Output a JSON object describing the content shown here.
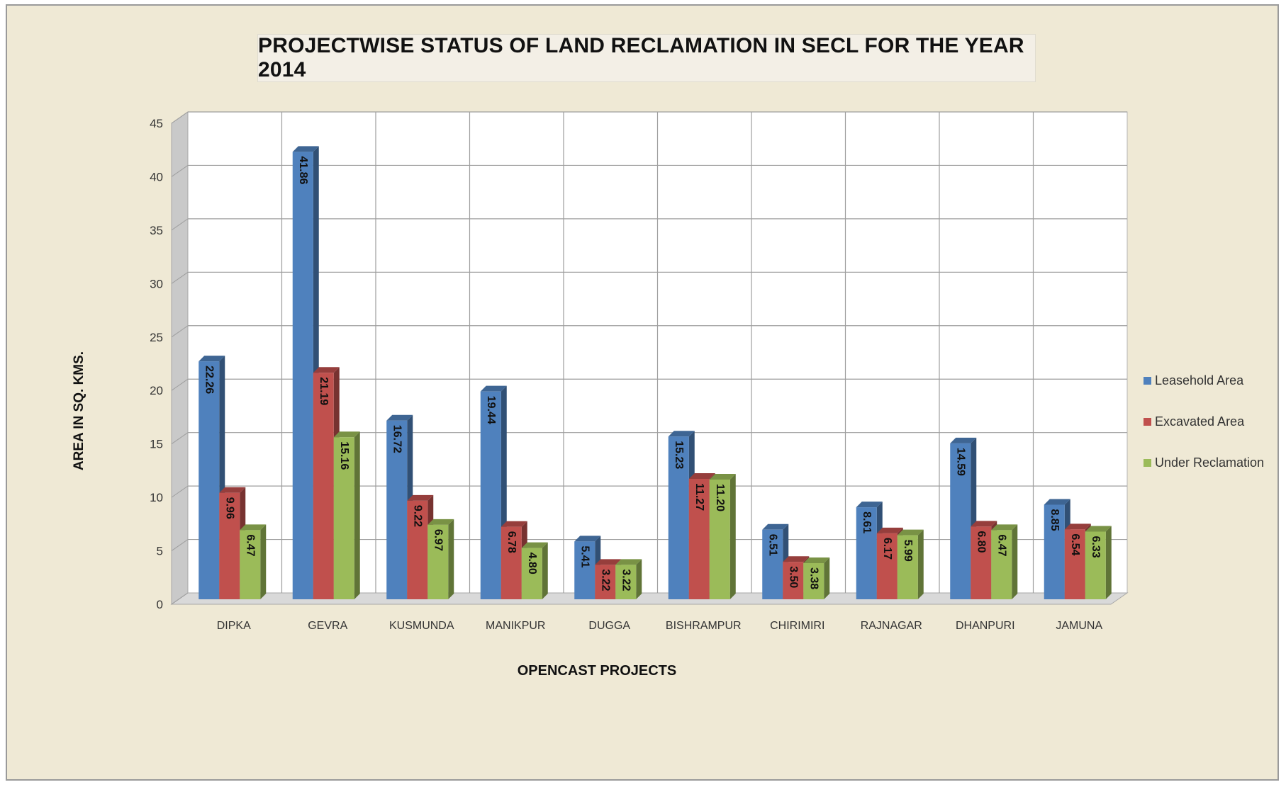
{
  "colors": {
    "leasehold": "#4f81bd",
    "excavated": "#c0504d",
    "reclamation": "#9bbb59"
  },
  "chart_data": {
    "type": "bar",
    "title": "PROJECTWISE STATUS OF LAND RECLAMATION IN SECL FOR THE YEAR 2014",
    "xlabel": "OPENCAST PROJECTS",
    "ylabel": "AREA IN SQ. KMS.",
    "ylim": [
      0,
      45
    ],
    "yticks": [
      0,
      5,
      10,
      15,
      20,
      25,
      30,
      35,
      40,
      45
    ],
    "grid": true,
    "legend_position": "right",
    "categories": [
      "DIPKA",
      "GEVRA",
      "KUSMUNDA",
      "MANIKPUR",
      "DUGGA",
      "BISHRAMPUR",
      "CHIRIMIRI",
      "RAJNAGAR",
      "DHANPURI",
      "JAMUNA"
    ],
    "series": [
      {
        "name": "Leasehold Area",
        "values": [
          22.26,
          41.86,
          16.72,
          19.44,
          5.41,
          15.23,
          6.51,
          8.61,
          14.59,
          8.85
        ],
        "labels": [
          "22.26",
          "41.86",
          "16.72",
          "19.44",
          "5.41",
          "15.23",
          "6.51",
          "8.61",
          "14.59",
          "8.85"
        ]
      },
      {
        "name": "Excavated Area",
        "values": [
          9.96,
          21.19,
          9.22,
          6.78,
          3.22,
          11.27,
          3.5,
          6.17,
          6.8,
          6.54
        ],
        "labels": [
          "9.96",
          "21.19",
          "9.22",
          "6.78",
          "3.22",
          "11.27",
          "3.50",
          "6.17",
          "6.80",
          "6.54"
        ]
      },
      {
        "name": "Under Reclamation",
        "values": [
          6.47,
          15.16,
          6.97,
          4.8,
          3.22,
          11.2,
          3.38,
          5.99,
          6.47,
          6.33
        ],
        "labels": [
          "6.47",
          "15.16",
          "6.97",
          "4.80",
          "3.22",
          "11.20",
          "3.38",
          "5.99",
          "6.47",
          "6.33"
        ]
      }
    ]
  }
}
